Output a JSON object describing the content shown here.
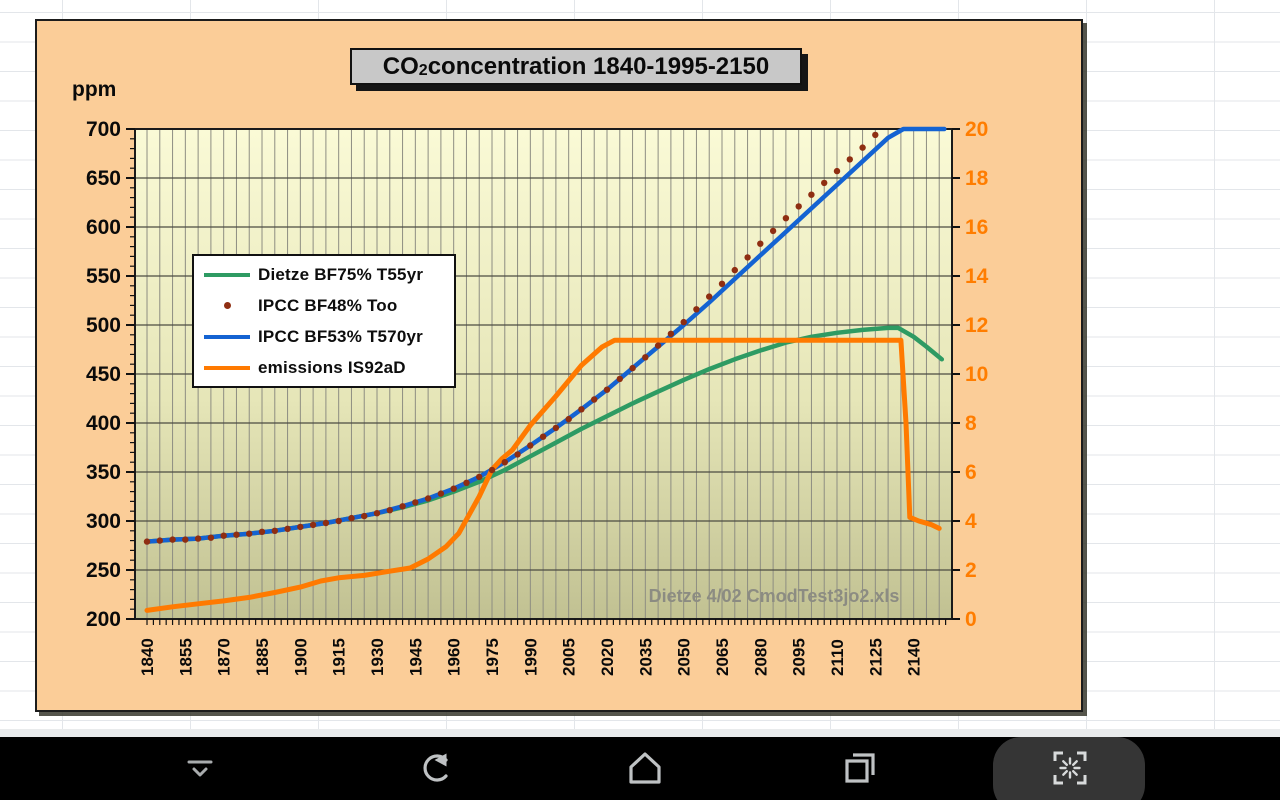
{
  "chart": {
    "title": {
      "prefix": "CO",
      "sub": "2",
      "suffix": " concentration 1840-1995-2150"
    },
    "y_left_label": "ppm",
    "legend": [
      {
        "label": "Dietze BF75% T55yr",
        "symbol": "line",
        "color": "#2e9b63"
      },
      {
        "label": "IPCC BF48% Too",
        "symbol": "dot",
        "color": "#8f2e12"
      },
      {
        "label": "IPCC BF53% T570yr",
        "symbol": "line",
        "color": "#1463d2"
      },
      {
        "label": "emissions IS92aD",
        "symbol": "line",
        "color": "#ff7a00"
      }
    ]
  },
  "chart_data": {
    "type": "line",
    "title": "CO2 concentration 1840-1995-2150",
    "watermark": "Dietze 4/02 CmodTest3jo2.xls",
    "x_axis": {
      "min": 1835.3,
      "max": 2155,
      "grid_step": 5,
      "tick_labels": [
        "1840",
        "1855",
        "1870",
        "1885",
        "1900",
        "1915",
        "1930",
        "1945",
        "1960",
        "1975",
        "1990",
        "2005",
        "2020",
        "2035",
        "2050",
        "2065",
        "2080",
        "2095",
        "2110",
        "2125",
        "2140"
      ]
    },
    "y_left": {
      "label": "ppm",
      "min": 200,
      "max": 700,
      "ticks": [
        200,
        250,
        300,
        350,
        400,
        450,
        500,
        550,
        600,
        650,
        700
      ]
    },
    "y_right": {
      "min": 0,
      "max": 20,
      "ticks": [
        0,
        2,
        4,
        6,
        8,
        10,
        12,
        14,
        16,
        18,
        20
      ],
      "color": "#ff7d00"
    },
    "series": [
      {
        "name": "Dietze BF75% T55yr",
        "axis": "left",
        "type": "line",
        "color": "#2e9b63",
        "points": [
          [
            1840,
            279
          ],
          [
            1850,
            281
          ],
          [
            1860,
            282
          ],
          [
            1870,
            285
          ],
          [
            1880,
            287
          ],
          [
            1890,
            290
          ],
          [
            1900,
            294
          ],
          [
            1910,
            298
          ],
          [
            1920,
            303
          ],
          [
            1930,
            308
          ],
          [
            1940,
            314
          ],
          [
            1950,
            321
          ],
          [
            1960,
            330
          ],
          [
            1970,
            340
          ],
          [
            1980,
            352
          ],
          [
            1990,
            366
          ],
          [
            2000,
            380
          ],
          [
            2010,
            394
          ],
          [
            2020,
            407
          ],
          [
            2030,
            420
          ],
          [
            2040,
            432
          ],
          [
            2050,
            444
          ],
          [
            2060,
            455
          ],
          [
            2070,
            465
          ],
          [
            2080,
            474
          ],
          [
            2090,
            482
          ],
          [
            2100,
            488
          ],
          [
            2110,
            492
          ],
          [
            2120,
            495
          ],
          [
            2130,
            497
          ],
          [
            2134,
            497
          ],
          [
            2140,
            488
          ],
          [
            2145,
            478
          ],
          [
            2151,
            465
          ]
        ]
      },
      {
        "name": "IPCC BF48% Too",
        "axis": "left",
        "type": "dots",
        "color": "#8f2e12",
        "points": [
          [
            1840,
            279
          ],
          [
            1845,
            280
          ],
          [
            1850,
            281
          ],
          [
            1855,
            281
          ],
          [
            1860,
            282
          ],
          [
            1865,
            283
          ],
          [
            1870,
            285
          ],
          [
            1875,
            286
          ],
          [
            1880,
            287
          ],
          [
            1885,
            289
          ],
          [
            1890,
            290
          ],
          [
            1895,
            292
          ],
          [
            1900,
            294
          ],
          [
            1905,
            296
          ],
          [
            1910,
            298
          ],
          [
            1915,
            300
          ],
          [
            1920,
            303
          ],
          [
            1925,
            305
          ],
          [
            1930,
            308
          ],
          [
            1935,
            311
          ],
          [
            1940,
            315
          ],
          [
            1945,
            319
          ],
          [
            1950,
            323
          ],
          [
            1955,
            328
          ],
          [
            1960,
            333
          ],
          [
            1965,
            339
          ],
          [
            1970,
            345
          ],
          [
            1975,
            352
          ],
          [
            1980,
            360
          ],
          [
            1985,
            368
          ],
          [
            1990,
            377
          ],
          [
            1995,
            386
          ],
          [
            2000,
            395
          ],
          [
            2005,
            404
          ],
          [
            2010,
            414
          ],
          [
            2015,
            424
          ],
          [
            2020,
            434
          ],
          [
            2025,
            445
          ],
          [
            2030,
            456
          ],
          [
            2035,
            467
          ],
          [
            2040,
            479
          ],
          [
            2045,
            491
          ],
          [
            2050,
            503
          ],
          [
            2055,
            516
          ],
          [
            2060,
            529
          ],
          [
            2065,
            542
          ],
          [
            2070,
            556
          ],
          [
            2075,
            569
          ],
          [
            2080,
            583
          ],
          [
            2085,
            596
          ],
          [
            2090,
            609
          ],
          [
            2095,
            621
          ],
          [
            2100,
            633
          ],
          [
            2105,
            645
          ],
          [
            2110,
            657
          ],
          [
            2115,
            669
          ],
          [
            2120,
            681
          ],
          [
            2125,
            694
          ]
        ]
      },
      {
        "name": "IPCC BF53% T570yr",
        "axis": "left",
        "type": "line",
        "color": "#1463d2",
        "points": [
          [
            1840,
            279
          ],
          [
            1850,
            281
          ],
          [
            1860,
            282
          ],
          [
            1870,
            285
          ],
          [
            1880,
            287
          ],
          [
            1890,
            290
          ],
          [
            1900,
            294
          ],
          [
            1910,
            298
          ],
          [
            1920,
            303
          ],
          [
            1930,
            308
          ],
          [
            1940,
            315
          ],
          [
            1950,
            323
          ],
          [
            1960,
            333
          ],
          [
            1970,
            345
          ],
          [
            1980,
            360
          ],
          [
            1990,
            377
          ],
          [
            2000,
            395
          ],
          [
            2010,
            414
          ],
          [
            2020,
            434
          ],
          [
            2030,
            456
          ],
          [
            2040,
            478
          ],
          [
            2050,
            500
          ],
          [
            2060,
            523
          ],
          [
            2070,
            547
          ],
          [
            2080,
            571
          ],
          [
            2090,
            595
          ],
          [
            2100,
            619
          ],
          [
            2110,
            643
          ],
          [
            2120,
            667
          ],
          [
            2130,
            691
          ],
          [
            2136,
            700
          ],
          [
            2152,
            700
          ]
        ]
      },
      {
        "name": "emissions IS92aD",
        "axis": "right",
        "type": "line",
        "color": "#ff7a00",
        "points": [
          [
            1840,
            0.35
          ],
          [
            1850,
            0.5
          ],
          [
            1860,
            0.62
          ],
          [
            1870,
            0.74
          ],
          [
            1880,
            0.88
          ],
          [
            1890,
            1.08
          ],
          [
            1900,
            1.3
          ],
          [
            1908,
            1.55
          ],
          [
            1915,
            1.68
          ],
          [
            1925,
            1.78
          ],
          [
            1935,
            1.95
          ],
          [
            1943,
            2.08
          ],
          [
            1950,
            2.45
          ],
          [
            1957,
            2.95
          ],
          [
            1962,
            3.5
          ],
          [
            1970,
            5.0
          ],
          [
            1975,
            6.1
          ],
          [
            1979,
            6.55
          ],
          [
            1983,
            6.9
          ],
          [
            1990,
            7.9
          ],
          [
            2000,
            9.1
          ],
          [
            2010,
            10.35
          ],
          [
            2018,
            11.1
          ],
          [
            2023,
            11.38
          ],
          [
            2135,
            11.38
          ],
          [
            2137,
            8.0
          ],
          [
            2138.5,
            4.15
          ],
          [
            2142,
            4.0
          ],
          [
            2147,
            3.85
          ],
          [
            2150,
            3.7
          ]
        ]
      }
    ]
  },
  "sheet": {
    "fragment_color": "#2050c8",
    "fragments": [
      {
        "t": 44,
        "c": "8"
      },
      {
        "t": 74,
        "c": "0"
      },
      {
        "t": 103,
        "c": "2"
      },
      {
        "t": 133,
        "c": "2"
      },
      {
        "t": 162,
        "c": "8"
      },
      {
        "t": 192,
        "c": "8"
      },
      {
        "t": 221,
        "c": "2"
      },
      {
        "t": 251,
        "c": "8"
      },
      {
        "t": 310,
        "c": "5"
      },
      {
        "t": 339,
        "c": "0"
      },
      {
        "t": 369,
        "c": "8"
      },
      {
        "t": 398,
        "c": "3"
      },
      {
        "t": 428,
        "c": "8"
      },
      {
        "t": 457,
        "c": "8"
      },
      {
        "t": 487,
        "c": "6"
      },
      {
        "t": 546,
        "c": "2"
      },
      {
        "t": 575,
        "c": "7"
      },
      {
        "t": 605,
        "c": "2"
      }
    ]
  },
  "navbar": {
    "icons": [
      "hide-bar-icon",
      "back-icon",
      "home-icon",
      "recents-icon",
      "screenshot-icon"
    ]
  }
}
